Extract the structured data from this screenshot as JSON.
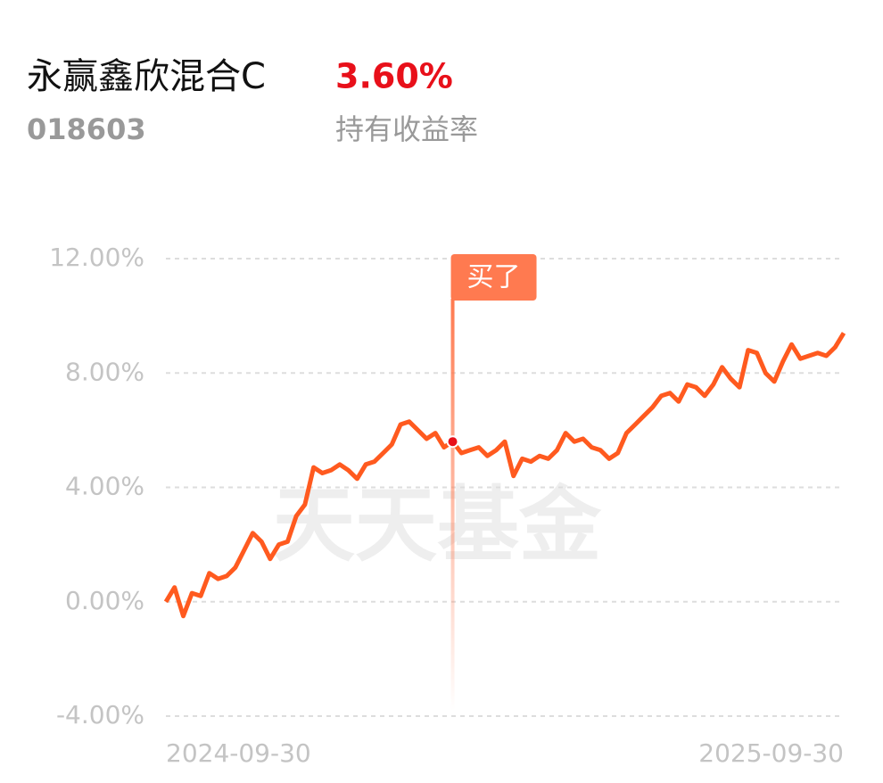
{
  "header": {
    "title": "永赢鑫欣混合C",
    "return": "3.60%",
    "code": "018603",
    "return_label": "持有收益率"
  },
  "chart_data": {
    "type": "line",
    "watermark": "天天基金",
    "annotation": "买了",
    "color": "#ff5a1f",
    "grid": true,
    "ylim": [
      -4,
      12
    ],
    "yticks": [
      {
        "value": -4,
        "label": "-4.00%"
      },
      {
        "value": 0,
        "label": "0.00%"
      },
      {
        "value": 4,
        "label": "4.00%"
      },
      {
        "value": 8,
        "label": "8.00%"
      },
      {
        "value": 12,
        "label": "12.00%"
      }
    ],
    "categories": [
      "2024-09-30",
      null,
      null,
      null,
      null,
      null,
      null,
      null,
      null,
      null,
      null,
      null,
      null,
      null,
      null,
      null,
      null,
      null,
      null,
      null,
      null,
      null,
      null,
      null,
      null,
      null,
      null,
      null,
      null,
      null,
      null,
      null,
      null,
      null,
      null,
      null,
      null,
      null,
      null,
      null,
      null,
      null,
      null,
      null,
      null,
      null,
      null,
      null,
      null,
      null,
      null,
      null,
      null,
      null,
      null,
      null,
      null,
      null,
      null,
      null,
      null,
      null,
      null,
      null,
      null,
      null,
      null,
      null,
      null,
      null,
      null,
      null,
      null,
      null,
      null,
      null,
      null,
      null,
      "2025-09-30"
    ],
    "values": [
      0.0,
      0.5,
      -0.5,
      0.3,
      0.2,
      1.0,
      0.8,
      0.9,
      1.2,
      1.8,
      2.4,
      2.1,
      1.5,
      2.0,
      2.1,
      3.0,
      3.4,
      4.7,
      4.5,
      4.6,
      4.8,
      4.6,
      4.3,
      4.8,
      4.9,
      5.2,
      5.5,
      6.2,
      6.3,
      6.0,
      5.7,
      5.9,
      5.4,
      5.6,
      5.2,
      5.3,
      5.4,
      5.1,
      5.3,
      5.6,
      4.4,
      5.0,
      4.9,
      5.1,
      5.0,
      5.3,
      5.9,
      5.6,
      5.7,
      5.4,
      5.3,
      5.0,
      5.2,
      5.9,
      6.2,
      6.5,
      6.8,
      7.2,
      7.3,
      7.0,
      7.6,
      7.5,
      7.2,
      7.6,
      8.2,
      7.8,
      7.5,
      8.8,
      8.7,
      8.0,
      7.7,
      8.4,
      9.0,
      8.5,
      8.6,
      8.7,
      8.6,
      8.9,
      9.4
    ]
  }
}
